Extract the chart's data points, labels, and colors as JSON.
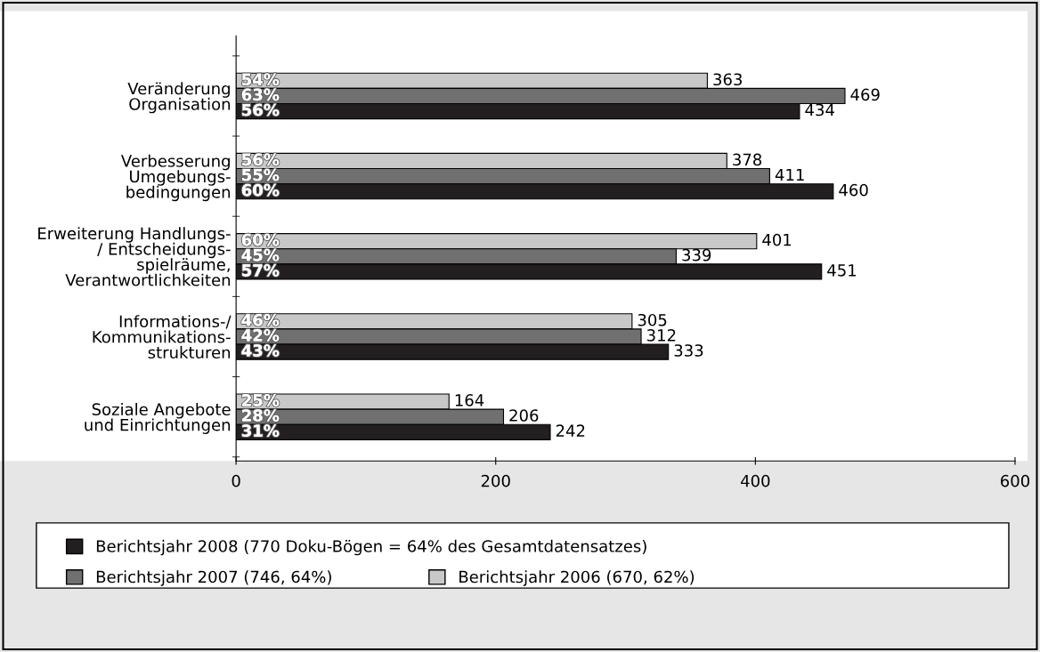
{
  "chart_data": {
    "type": "bar",
    "orientation": "horizontal",
    "categories": [
      "Veränderung\nOrganisation",
      "Verbesserung\nUmgebungs-\nbedingungen",
      "Erweiterung Handlungs-\n/ Entscheidungs-\nspielräume,\nVerantwortlichkeiten",
      "Informations-/\nKommunikations-\nstrukturen",
      "Soziale Angebote\nund Einrichtungen"
    ],
    "series": [
      {
        "name": "Berichtsjahr 2006 (670, 62%)",
        "color": "#c8c8c8",
        "values": [
          363,
          378,
          401,
          305,
          164
        ]
      },
      {
        "name": "Berichtsjahr 2007 (746, 64%)",
        "color": "#707070",
        "values": [
          469,
          411,
          339,
          312,
          206
        ]
      },
      {
        "name": "Berichtsjahr 2008 (770 Doku-Bögen = 64% des Gesamtdatensatzes)",
        "color": "#231f20",
        "values": [
          434,
          460,
          451,
          333,
          242
        ]
      }
    ],
    "annotations": [
      "54%",
      "63%",
      "56%",
      "56%",
      "55%",
      "60%",
      "60%",
      "45%",
      "57%",
      "46%",
      "42%",
      "43%",
      "25%",
      "28%",
      "31%"
    ],
    "xlim": [
      0,
      600
    ],
    "xticks": [
      0,
      200,
      400,
      600
    ],
    "data_labels": true,
    "grid": false,
    "legend": "bottom"
  }
}
